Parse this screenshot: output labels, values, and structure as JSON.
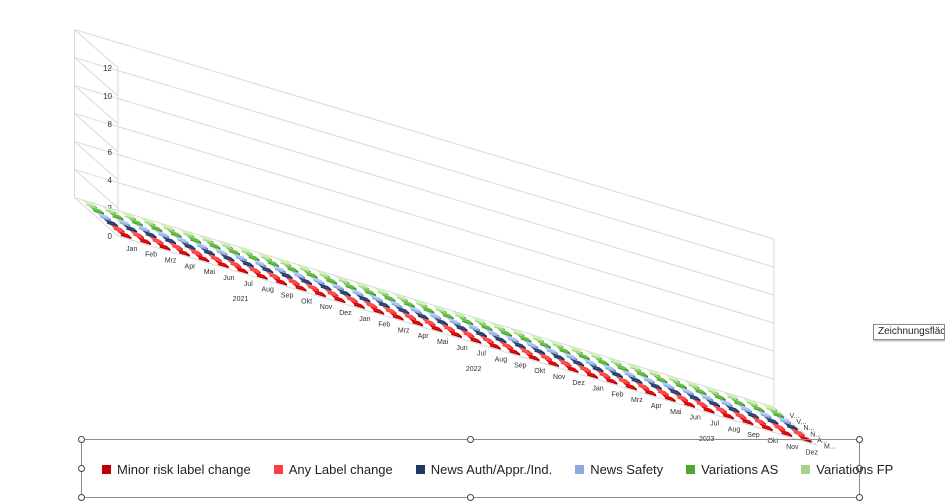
{
  "chart_data": {
    "type": "bar",
    "subtype": "3d-column",
    "y_ticks": [
      "0",
      "2",
      "4",
      "6",
      "8",
      "10",
      "12"
    ],
    "ylim": [
      0,
      12
    ],
    "categories": [
      "Jan",
      "Feb",
      "Mrz",
      "Apr",
      "Mai",
      "Jun",
      "Jul",
      "Aug",
      "Sep",
      "Okt",
      "Nov",
      "Dez",
      "Jan",
      "Feb",
      "Mrz",
      "Apr",
      "Mai",
      "Jun",
      "Jul",
      "Aug",
      "Sep",
      "Okt",
      "Nov",
      "Dez",
      "Jan",
      "Feb",
      "Mrz",
      "Apr",
      "Mai",
      "Jun",
      "Jul",
      "Aug",
      "Sep",
      "Okt",
      "Nov",
      "Dez"
    ],
    "year_labels": [
      "2021",
      "2022",
      "2023"
    ],
    "depth_labels": [
      "M...",
      "A...",
      "N...",
      "N...",
      "V...",
      "V..."
    ],
    "series": [
      {
        "name": "Minor risk label change",
        "color": "#c00000",
        "values": [
          0,
          0,
          0,
          0,
          0,
          0,
          0,
          0,
          0,
          0,
          0,
          0,
          0,
          0,
          0,
          0,
          0,
          0,
          0,
          0,
          0,
          0,
          0,
          0,
          0,
          0,
          0,
          0,
          0,
          0,
          0,
          0,
          0,
          0,
          0,
          0
        ]
      },
      {
        "name": "Any Label change",
        "color": "#ff3b3b",
        "values": [
          0,
          0,
          0,
          0,
          0,
          0,
          0,
          0,
          0,
          0,
          0,
          0,
          0,
          0,
          0,
          0,
          0,
          0,
          0,
          0,
          0,
          0,
          0,
          0,
          0,
          0,
          0,
          0,
          0,
          0,
          0,
          0,
          0,
          0,
          0,
          0
        ]
      },
      {
        "name": "News Auth/Appr./Ind.",
        "color": "#1f3864",
        "values": [
          0,
          0,
          0,
          0,
          0,
          0,
          0,
          0,
          0,
          0,
          0,
          0,
          0,
          0,
          0,
          0,
          0,
          0,
          0,
          0,
          0,
          0,
          0,
          0,
          0,
          0,
          0,
          0,
          0,
          0,
          0,
          0,
          0,
          0,
          0,
          0
        ]
      },
      {
        "name": "News Safety",
        "color": "#8ea9db",
        "values": [
          0,
          0,
          0,
          0,
          0,
          0,
          0,
          0,
          0,
          0,
          0,
          0,
          0,
          0,
          0,
          0,
          0,
          0,
          0,
          0,
          0,
          0,
          0,
          0,
          0,
          0,
          0,
          0,
          0,
          0,
          0,
          0,
          0,
          0,
          0,
          0
        ]
      },
      {
        "name": "Variations AS",
        "color": "#4ea72e",
        "values": [
          0,
          0,
          0,
          0,
          0,
          0,
          0,
          0,
          0,
          0,
          0,
          0,
          0,
          0,
          0,
          0,
          0,
          0,
          0,
          0,
          0,
          0,
          0,
          0,
          0,
          0,
          0,
          0,
          0,
          0,
          0,
          0,
          0,
          0,
          0,
          0
        ]
      },
      {
        "name": "Variations FP",
        "color": "#a9d18e",
        "values": [
          0,
          0,
          0,
          0,
          0,
          0,
          0,
          0,
          0,
          0,
          0,
          0,
          0,
          0,
          0,
          0,
          0,
          0,
          0,
          0,
          0,
          0,
          0,
          0,
          0,
          0,
          0,
          0,
          0,
          0,
          0,
          0,
          0,
          0,
          0,
          0
        ]
      }
    ],
    "legend_position": "bottom",
    "grid": true
  },
  "tooltip": "Zeichnungsfläche"
}
